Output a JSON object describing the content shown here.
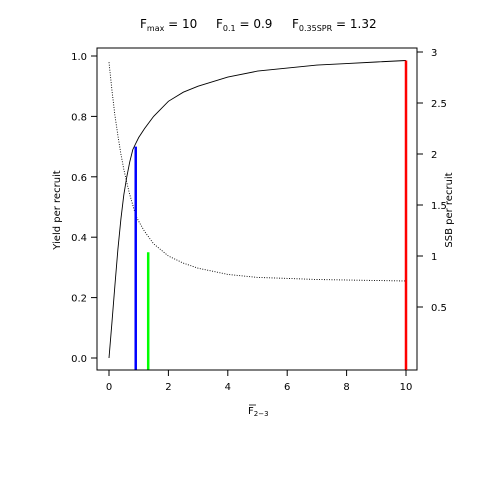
{
  "title_parts": [
    {
      "base": "F",
      "sub": "max",
      "rest": " = 10"
    },
    {
      "base": "F",
      "sub": "0.1",
      "rest": " = 0.9"
    },
    {
      "base": "F",
      "sub": "0.35SPR",
      "rest": " = 1.32"
    }
  ],
  "xlabel": {
    "base": "F",
    "sub": "2−3"
  },
  "ylabel_left": "Yield per recruit",
  "ylabel_right": "SSB per recruit",
  "chart_data": {
    "type": "line",
    "xlim": [
      0,
      10
    ],
    "ylim_left": [
      0,
      1.0
    ],
    "ylim_right": [
      0,
      3.0
    ],
    "x_ticks": [
      0,
      2,
      4,
      6,
      8,
      10
    ],
    "x_tick_labels": [
      "0",
      "2",
      "4",
      "6",
      "8",
      "10"
    ],
    "y_left_ticks": [
      0.0,
      0.2,
      0.4,
      0.6,
      0.8,
      1.0
    ],
    "y_left_tick_labels": [
      "0.0",
      "0.2",
      "0.4",
      "0.6",
      "0.8",
      "1.0"
    ],
    "y_right_ticks": [
      0.5,
      1,
      1.5,
      2,
      2.5,
      3
    ],
    "y_right_tick_labels": [
      "0.5",
      "1",
      "1.5",
      "2",
      "2.5",
      "3"
    ],
    "series": [
      {
        "axis": "left",
        "style": "solid",
        "color": "#000000",
        "x": [
          0,
          0.1,
          0.2,
          0.3,
          0.4,
          0.5,
          0.6,
          0.7,
          0.8,
          0.9,
          1.0,
          1.2,
          1.5,
          2,
          2.5,
          3,
          4,
          5,
          6,
          7,
          8,
          9,
          10
        ],
        "y": [
          0.0,
          0.12,
          0.24,
          0.36,
          0.46,
          0.54,
          0.6,
          0.65,
          0.69,
          0.71,
          0.73,
          0.76,
          0.8,
          0.85,
          0.88,
          0.9,
          0.93,
          0.95,
          0.96,
          0.97,
          0.975,
          0.98,
          0.985
        ]
      },
      {
        "axis": "right",
        "style": "dotted",
        "color": "#000000",
        "x": [
          0,
          0.1,
          0.2,
          0.3,
          0.4,
          0.5,
          0.6,
          0.7,
          0.8,
          0.9,
          1.0,
          1.2,
          1.5,
          2,
          2.5,
          3,
          4,
          5,
          6,
          7,
          8,
          9,
          10
        ],
        "y": [
          2.9,
          2.62,
          2.38,
          2.18,
          2.0,
          1.85,
          1.72,
          1.6,
          1.5,
          1.4,
          1.34,
          1.24,
          1.12,
          1.0,
          0.93,
          0.88,
          0.82,
          0.79,
          0.78,
          0.77,
          0.765,
          0.76,
          0.755
        ]
      }
    ],
    "reference_lines": [
      {
        "x": 0.9,
        "y_top": 0.7,
        "color": "#0000ff"
      },
      {
        "x": 1.32,
        "y_top": 0.35,
        "color": "#00ff00"
      },
      {
        "x": 10,
        "y_top": 0.985,
        "color": "#ff0000"
      }
    ]
  }
}
